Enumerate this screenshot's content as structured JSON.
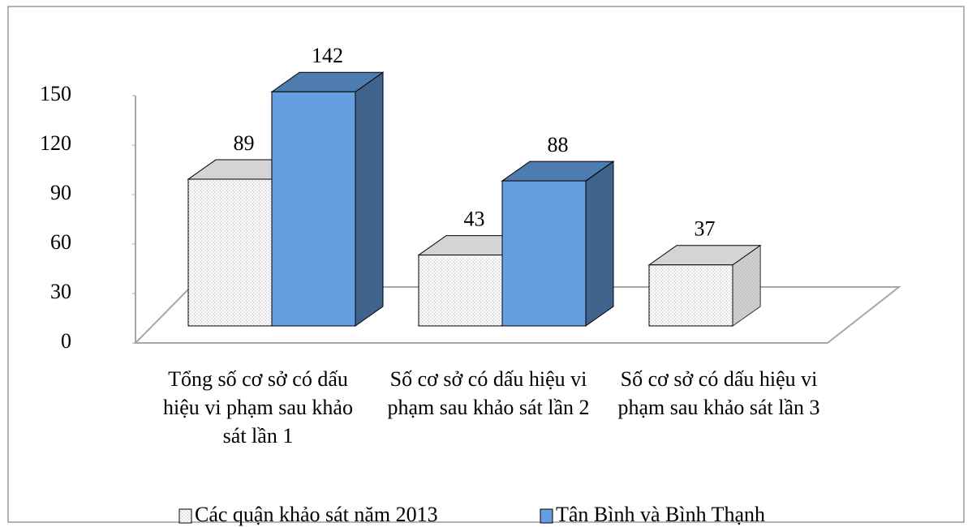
{
  "chart_data": {
    "type": "bar3d",
    "categories": [
      "Tổng số cơ sở có dấu hiệu vi phạm sau khảo sát lần 1",
      "Số cơ sở có dấu hiệu vi phạm sau khảo sát lần 2",
      "Số cơ sở có dấu hiệu vi phạm sau khảo sát lần 3"
    ],
    "series": [
      {
        "name": "Các quận khảo sát năm 2013",
        "color": "#ffffff",
        "pattern": "dots",
        "values": [
          89,
          43,
          37
        ]
      },
      {
        "name": "Tân Bình và Bình Thạnh",
        "color": "#659fdf",
        "values": [
          142,
          88,
          null
        ]
      }
    ],
    "ylim": [
      0,
      150
    ],
    "yticks": [
      0,
      30,
      60,
      90,
      120,
      150
    ],
    "legend": "bottom"
  }
}
